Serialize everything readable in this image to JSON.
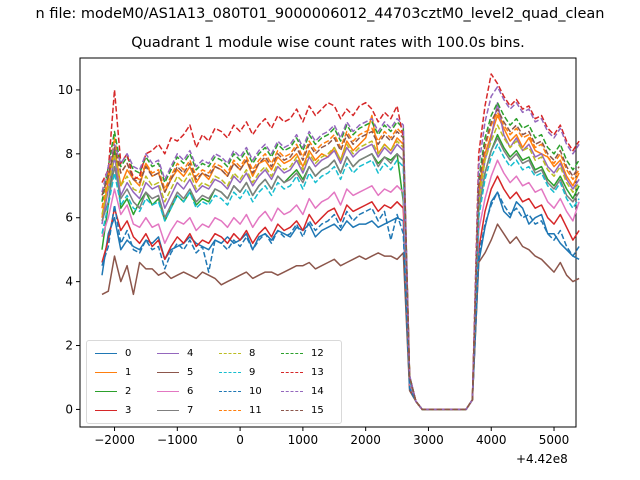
{
  "figure": {
    "suptitle": "n file: modeM0/AS1A13_080T01_9000006012_44703cztM0_level2_quad_clean",
    "title": "Quadrant 1 module wise count rates with 100.0s bins.",
    "offset_text": "+4.42e8"
  },
  "chart_data": {
    "type": "line",
    "title": "Quadrant 1 module wise count rates with 100.0s bins.",
    "xlabel": "",
    "ylabel": "",
    "x_offset": 442000000,
    "xlim": [
      -2550,
      5350
    ],
    "ylim": [
      -0.55,
      11.0
    ],
    "xticks": [
      -2000,
      -1000,
      0,
      1000,
      2000,
      3000,
      4000,
      5000
    ],
    "xtick_labels": [
      "−2000",
      "−1000",
      "0",
      "1000",
      "2000",
      "3000",
      "4000",
      "5000"
    ],
    "yticks": [
      0,
      2,
      4,
      6,
      8,
      10
    ],
    "ytick_labels": [
      "0",
      "2",
      "4",
      "6",
      "8",
      "10"
    ],
    "grid": false,
    "legend_position": "lower-left",
    "legend_columns": 4,
    "x_start": -2200,
    "x_step": 100,
    "gap_range": [
      2700,
      3700
    ],
    "series": [
      {
        "name": "0",
        "color": "#1f77b4",
        "dash": "solid",
        "pre": [
          4.2,
          5.5,
          6.0,
          5.0,
          5.3,
          5.1,
          5.0,
          5.3,
          5.2,
          5.4,
          4.7,
          5.0,
          5.1,
          5.2,
          5.4,
          5.2,
          5.1,
          5.0,
          5.3,
          5.2,
          5.4,
          5.2,
          5.3,
          5.5,
          5.0,
          5.4,
          5.5,
          5.3,
          5.6,
          5.5,
          5.4,
          5.7,
          5.6,
          5.8,
          5.4,
          5.6,
          5.7,
          5.8,
          5.6,
          5.9,
          5.7,
          5.8,
          5.8,
          5.9,
          5.7,
          5.8,
          5.9,
          6.0,
          5.9
        ],
        "post": [
          4.6,
          5.7,
          6.5,
          6.8,
          6.2,
          6.0,
          6.5,
          6.3,
          5.8,
          6.0,
          6.1,
          5.5,
          5.5,
          5.2,
          5.0,
          4.8,
          4.7
        ]
      },
      {
        "name": "1",
        "color": "#ff7f0e",
        "dash": "solid",
        "pre": [
          6.0,
          7.2,
          8.2,
          7.0,
          7.5,
          7.2,
          7.0,
          7.7,
          7.3,
          7.4,
          6.8,
          7.2,
          7.5,
          7.3,
          7.6,
          7.1,
          7.4,
          7.2,
          7.6,
          7.5,
          7.3,
          7.7,
          7.5,
          7.8,
          7.3,
          7.7,
          7.8,
          7.5,
          7.9,
          7.7,
          7.8,
          8.0,
          7.6,
          8.1,
          7.8,
          8.0,
          7.9,
          8.2,
          7.8,
          8.4,
          8.1,
          8.3,
          8.5,
          9.2,
          8.0,
          8.3,
          8.1,
          8.5,
          8.3
        ],
        "post": [
          6.8,
          8.0,
          8.6,
          9.2,
          8.8,
          8.4,
          8.6,
          8.2,
          8.5,
          8.1,
          8.0,
          7.9,
          7.6,
          7.8,
          7.3,
          7.0,
          7.4
        ]
      },
      {
        "name": "2",
        "color": "#2ca02c",
        "dash": "solid",
        "pre": [
          5.0,
          6.4,
          8.1,
          6.3,
          6.6,
          6.1,
          6.5,
          6.8,
          6.4,
          6.6,
          5.9,
          6.3,
          6.7,
          6.5,
          6.8,
          6.4,
          6.6,
          6.5,
          6.9,
          6.8,
          6.6,
          7.0,
          6.8,
          7.1,
          6.7,
          7.0,
          7.2,
          6.9,
          7.3,
          7.1,
          7.3,
          7.5,
          7.2,
          7.6,
          7.3,
          7.5,
          7.6,
          7.8,
          7.4,
          7.9,
          7.6,
          7.8,
          7.9,
          8.0,
          7.7,
          7.9,
          7.8,
          8.0,
          6.5
        ],
        "post": [
          6.2,
          7.4,
          8.1,
          8.6,
          8.2,
          7.9,
          8.1,
          7.8,
          7.9,
          7.5,
          7.6,
          7.2,
          7.0,
          7.3,
          6.9,
          6.6,
          7.0
        ]
      },
      {
        "name": "3",
        "color": "#d62728",
        "dash": "solid",
        "pre": [
          4.6,
          5.3,
          6.3,
          5.6,
          5.9,
          5.4,
          5.2,
          5.5,
          5.1,
          5.3,
          4.7,
          5.1,
          5.4,
          5.2,
          5.5,
          5.1,
          5.3,
          5.2,
          5.5,
          5.4,
          5.2,
          5.5,
          5.3,
          5.6,
          5.2,
          5.5,
          5.7,
          5.4,
          5.8,
          5.6,
          5.7,
          5.9,
          5.6,
          6.1,
          5.8,
          6.0,
          6.2,
          6.3,
          5.9,
          6.4,
          6.2,
          6.3,
          6.4,
          6.5,
          6.2,
          6.4,
          6.3,
          6.5,
          6.3
        ],
        "post": [
          5.0,
          6.2,
          6.9,
          7.3,
          6.9,
          6.6,
          6.8,
          6.5,
          6.6,
          6.3,
          6.4,
          6.0,
          5.8,
          6.1,
          5.7,
          5.3,
          5.6
        ]
      },
      {
        "name": "4",
        "color": "#9467bd",
        "dash": "solid",
        "pre": [
          5.8,
          6.9,
          7.9,
          6.7,
          7.1,
          6.8,
          6.6,
          7.1,
          6.9,
          7.0,
          6.3,
          6.7,
          7.1,
          6.9,
          7.2,
          6.8,
          7.0,
          6.9,
          7.2,
          7.1,
          6.9,
          7.3,
          7.1,
          7.4,
          7.0,
          7.3,
          7.5,
          7.2,
          7.6,
          7.4,
          7.5,
          7.8,
          7.4,
          7.9,
          7.6,
          7.8,
          7.9,
          8.1,
          7.7,
          8.2,
          7.9,
          8.1,
          8.2,
          8.3,
          7.9,
          8.2,
          8.0,
          8.3,
          8.1
        ],
        "post": [
          6.5,
          7.8,
          8.5,
          9.6,
          8.6,
          8.2,
          8.5,
          8.1,
          8.3,
          7.9,
          8.0,
          7.6,
          7.4,
          7.7,
          7.2,
          6.9,
          7.2
        ]
      },
      {
        "name": "5",
        "color": "#8c564b",
        "dash": "solid",
        "pre": [
          3.6,
          3.7,
          4.8,
          4.0,
          4.5,
          3.6,
          4.6,
          4.4,
          4.4,
          4.2,
          4.3,
          4.1,
          4.2,
          4.3,
          4.2,
          4.1,
          4.3,
          4.2,
          4.1,
          3.9,
          4.0,
          4.1,
          4.2,
          4.3,
          4.1,
          4.2,
          4.3,
          4.3,
          4.2,
          4.3,
          4.4,
          4.5,
          4.5,
          4.6,
          4.4,
          4.5,
          4.6,
          4.7,
          4.5,
          4.6,
          4.7,
          4.8,
          4.7,
          4.8,
          4.9,
          4.8,
          4.8,
          4.7,
          4.9
        ],
        "post": [
          4.6,
          4.9,
          5.3,
          5.8,
          5.5,
          5.2,
          5.4,
          5.1,
          5.0,
          4.8,
          4.7,
          4.5,
          4.3,
          4.6,
          4.2,
          4.0,
          4.1
        ]
      },
      {
        "name": "6",
        "color": "#e377c2",
        "dash": "solid",
        "pre": [
          5.4,
          6.0,
          6.9,
          6.1,
          6.4,
          5.8,
          5.7,
          6.0,
          5.7,
          5.8,
          5.2,
          5.6,
          5.9,
          5.8,
          6.0,
          5.6,
          5.8,
          5.7,
          6.0,
          5.9,
          5.7,
          6.0,
          5.8,
          6.1,
          5.7,
          6.0,
          6.2,
          5.9,
          6.3,
          6.1,
          6.2,
          6.4,
          6.1,
          6.6,
          6.3,
          6.5,
          6.6,
          6.8,
          6.4,
          6.9,
          6.7,
          6.8,
          6.9,
          7.0,
          6.7,
          6.9,
          6.8,
          7.0,
          6.8
        ],
        "post": [
          5.6,
          6.6,
          7.3,
          7.8,
          7.4,
          7.1,
          7.3,
          7.0,
          7.1,
          6.8,
          6.9,
          6.5,
          6.3,
          6.6,
          6.2,
          5.9,
          6.5
        ]
      },
      {
        "name": "7",
        "color": "#7f7f7f",
        "dash": "solid",
        "pre": [
          5.9,
          6.5,
          7.6,
          6.6,
          6.9,
          6.5,
          6.3,
          6.8,
          6.6,
          6.7,
          6.0,
          6.4,
          6.8,
          6.6,
          6.9,
          6.5,
          6.7,
          6.6,
          6.9,
          6.8,
          6.6,
          7.0,
          6.8,
          7.1,
          6.7,
          7.0,
          7.2,
          6.9,
          7.3,
          7.1,
          7.2,
          7.4,
          7.1,
          7.6,
          7.3,
          7.5,
          7.6,
          7.8,
          7.4,
          7.9,
          7.6,
          7.8,
          7.9,
          8.0,
          7.6,
          7.9,
          7.7,
          8.0,
          7.8
        ],
        "post": [
          6.2,
          7.4,
          8.1,
          8.5,
          8.1,
          7.8,
          8.0,
          7.7,
          7.8,
          7.4,
          7.5,
          7.1,
          6.9,
          7.2,
          6.7,
          6.5,
          6.8
        ]
      },
      {
        "name": "8",
        "color": "#bcbd22",
        "dash": "dashed",
        "pre": [
          6.1,
          7.0,
          8.0,
          7.0,
          7.3,
          6.9,
          6.8,
          7.3,
          7.0,
          7.1,
          6.5,
          6.9,
          7.3,
          7.1,
          7.4,
          6.9,
          7.1,
          7.0,
          7.3,
          7.2,
          7.0,
          7.4,
          7.2,
          7.5,
          7.1,
          7.4,
          7.6,
          7.3,
          7.7,
          7.5,
          7.6,
          7.9,
          7.5,
          8.0,
          7.7,
          7.9,
          8.0,
          8.2,
          7.8,
          8.3,
          8.0,
          8.2,
          8.3,
          8.4,
          8.0,
          8.3,
          8.1,
          8.4,
          8.2
        ],
        "post": [
          6.5,
          7.8,
          8.4,
          8.9,
          8.5,
          8.2,
          8.4,
          8.1,
          8.2,
          7.8,
          7.9,
          7.5,
          7.3,
          7.6,
          7.1,
          6.8,
          7.1
        ]
      },
      {
        "name": "9",
        "color": "#17becf",
        "dash": "dashed",
        "pre": [
          5.5,
          6.4,
          7.4,
          6.4,
          6.7,
          6.3,
          6.2,
          6.6,
          6.4,
          6.5,
          5.9,
          6.3,
          6.7,
          6.5,
          6.8,
          6.3,
          6.5,
          6.4,
          6.7,
          6.6,
          6.4,
          6.8,
          6.6,
          6.9,
          6.5,
          6.8,
          7.0,
          6.7,
          7.1,
          6.9,
          7.0,
          7.3,
          6.9,
          7.4,
          7.1,
          7.3,
          7.4,
          7.6,
          7.2,
          7.7,
          7.4,
          7.6,
          7.7,
          7.8,
          7.4,
          7.7,
          7.5,
          7.8,
          7.6
        ],
        "post": [
          6.0,
          7.2,
          7.9,
          8.3,
          7.9,
          7.6,
          7.8,
          7.5,
          7.6,
          7.3,
          7.4,
          7.0,
          6.8,
          7.1,
          6.6,
          6.3,
          6.6
        ]
      },
      {
        "name": "10",
        "color": "#1f77b4",
        "dash": "dashed",
        "pre": [
          4.5,
          5.1,
          6.4,
          5.2,
          5.6,
          5.0,
          4.9,
          5.3,
          5.0,
          5.1,
          4.4,
          4.9,
          5.2,
          5.0,
          5.3,
          4.9,
          5.1,
          4.3,
          5.3,
          5.2,
          5.0,
          5.3,
          5.1,
          5.4,
          5.0,
          5.3,
          5.5,
          5.2,
          5.6,
          5.4,
          5.5,
          5.8,
          5.4,
          5.9,
          5.6,
          5.8,
          5.9,
          6.1,
          5.7,
          6.2,
          5.9,
          6.1,
          6.2,
          6.3,
          5.9,
          6.2,
          5.3,
          6.1,
          5.5
        ],
        "post": [
          4.8,
          5.8,
          6.4,
          6.8,
          6.4,
          6.1,
          6.3,
          6.0,
          6.1,
          5.8,
          5.9,
          5.5,
          5.3,
          5.6,
          5.1,
          4.8,
          5.1
        ]
      },
      {
        "name": "11",
        "color": "#ff7f0e",
        "dash": "dashed",
        "pre": [
          6.3,
          7.4,
          8.5,
          7.4,
          7.7,
          7.3,
          7.2,
          7.7,
          7.4,
          7.5,
          6.9,
          7.3,
          7.7,
          7.5,
          7.8,
          7.3,
          7.5,
          7.4,
          7.7,
          7.6,
          7.4,
          7.8,
          7.6,
          7.9,
          7.5,
          7.8,
          8.0,
          7.7,
          8.1,
          7.9,
          8.0,
          8.3,
          7.9,
          8.4,
          8.1,
          8.3,
          8.4,
          8.6,
          8.2,
          8.7,
          8.4,
          8.6,
          8.7,
          8.8,
          8.4,
          8.7,
          8.5,
          8.8,
          8.6
        ],
        "post": [
          7.0,
          8.2,
          8.9,
          9.3,
          8.9,
          8.6,
          8.8,
          8.5,
          8.6,
          8.2,
          8.3,
          7.9,
          7.7,
          8.0,
          7.5,
          7.2,
          7.5
        ]
      },
      {
        "name": "12",
        "color": "#2ca02c",
        "dash": "dashed",
        "pre": [
          6.5,
          7.6,
          8.7,
          7.6,
          7.9,
          7.5,
          7.4,
          7.9,
          7.6,
          7.7,
          7.1,
          7.5,
          7.9,
          7.7,
          8.0,
          7.5,
          7.7,
          7.6,
          7.9,
          7.8,
          7.6,
          8.0,
          7.8,
          8.1,
          7.7,
          8.0,
          8.2,
          7.9,
          8.3,
          8.1,
          8.2,
          8.5,
          8.1,
          8.6,
          8.3,
          8.5,
          8.6,
          8.8,
          8.4,
          8.9,
          8.6,
          8.8,
          8.9,
          9.0,
          8.6,
          8.9,
          8.7,
          9.0,
          8.8
        ],
        "post": [
          7.2,
          8.5,
          9.2,
          9.6,
          9.2,
          8.9,
          9.1,
          8.8,
          8.9,
          8.5,
          8.6,
          8.2,
          8.0,
          8.3,
          7.8,
          7.5,
          7.8
        ]
      },
      {
        "name": "13",
        "color": "#d62728",
        "dash": "dashed",
        "pre": [
          7.1,
          7.5,
          10.0,
          7.7,
          8.0,
          7.2,
          7.3,
          8.0,
          8.1,
          8.3,
          8.0,
          8.5,
          8.4,
          8.6,
          8.9,
          8.2,
          8.6,
          8.4,
          8.8,
          8.7,
          8.5,
          8.9,
          8.7,
          9.0,
          8.6,
          8.9,
          9.1,
          8.8,
          9.2,
          9.0,
          9.1,
          9.4,
          9.0,
          9.5,
          9.2,
          9.4,
          9.6,
          9.5,
          9.1,
          9.4,
          9.2,
          9.5,
          9.6,
          9.4,
          9.0,
          9.3,
          9.1,
          9.5,
          8.5
        ],
        "post": [
          8.0,
          9.5,
          10.5,
          10.2,
          9.8,
          9.5,
          9.7,
          9.4,
          9.5,
          9.1,
          9.2,
          8.8,
          8.6,
          8.9,
          8.4,
          8.1,
          8.4
        ]
      },
      {
        "name": "14",
        "color": "#9467bd",
        "dash": "dashed",
        "pre": [
          6.8,
          7.6,
          8.3,
          7.7,
          8.0,
          7.6,
          7.5,
          8.0,
          7.7,
          7.8,
          7.2,
          7.6,
          8.0,
          7.8,
          8.1,
          7.6,
          7.8,
          7.7,
          8.0,
          7.9,
          7.7,
          8.1,
          7.9,
          8.2,
          7.8,
          8.1,
          8.3,
          8.0,
          8.4,
          8.2,
          8.3,
          8.6,
          8.2,
          8.7,
          8.4,
          8.6,
          8.7,
          8.9,
          8.5,
          9.0,
          8.7,
          8.9,
          9.0,
          9.1,
          8.7,
          9.0,
          8.8,
          9.1,
          8.9
        ],
        "post": [
          7.6,
          9.0,
          9.8,
          10.1,
          9.7,
          9.4,
          9.6,
          9.3,
          9.4,
          9.0,
          9.1,
          8.7,
          8.5,
          8.8,
          8.3,
          8.0,
          8.3
        ]
      },
      {
        "name": "15",
        "color": "#8c564b",
        "dash": "dashed",
        "pre": [
          6.7,
          7.3,
          8.2,
          7.4,
          7.7,
          7.2,
          7.1,
          7.6,
          7.3,
          7.4,
          6.8,
          7.2,
          7.6,
          7.4,
          7.7,
          7.2,
          7.4,
          7.3,
          7.6,
          7.5,
          7.3,
          7.7,
          7.5,
          7.8,
          7.4,
          7.7,
          7.9,
          7.6,
          8.0,
          7.8,
          7.9,
          8.2,
          7.8,
          8.3,
          8.0,
          8.2,
          8.3,
          8.5,
          8.1,
          8.6,
          8.3,
          8.5,
          8.6,
          8.7,
          8.3,
          8.6,
          8.4,
          8.7,
          8.5
        ],
        "post": [
          7.0,
          8.3,
          9.0,
          9.4,
          9.0,
          8.7,
          8.9,
          8.6,
          8.7,
          8.3,
          8.4,
          8.0,
          7.8,
          8.1,
          7.6,
          7.3,
          7.6
        ]
      }
    ]
  }
}
